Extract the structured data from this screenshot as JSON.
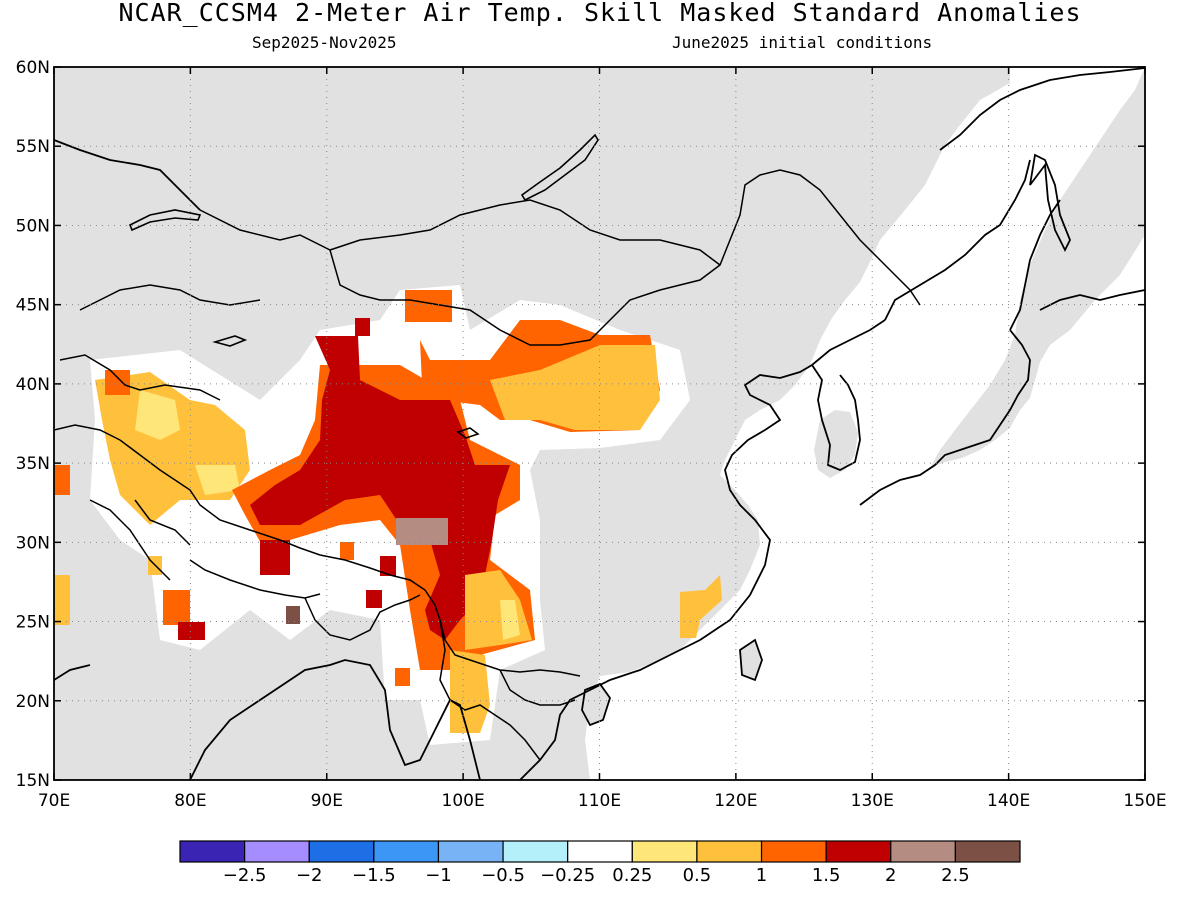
{
  "title": "NCAR_CCSM4 2-Meter Air Temp. Skill Masked Standard Anomalies",
  "subtitle_left": "Sep2025-Nov2025",
  "subtitle_right": "June2025 initial conditions",
  "map": {
    "lon_range": [
      70,
      150
    ],
    "lat_range": [
      15,
      60
    ],
    "lon_ticks": [
      "70E",
      "80E",
      "90E",
      "100E",
      "110E",
      "120E",
      "130E",
      "140E",
      "150E"
    ],
    "lat_ticks": [
      "15N",
      "20N",
      "25N",
      "30N",
      "35N",
      "40N",
      "45N",
      "50N",
      "55N",
      "60N"
    ],
    "grid": true,
    "land_color": "#e1e1e1",
    "ocean_color": "#ffffff"
  },
  "colorbar": {
    "colors": [
      "#3a24b4",
      "#a58cff",
      "#1e6ee6",
      "#3c96f5",
      "#78b4f5",
      "#b4f0fa",
      "#ffffff",
      "#ffe678",
      "#ffc03c",
      "#ff6400",
      "#c00000",
      "#b48c82",
      "#7d5046"
    ],
    "labels": [
      "-2.5",
      "-2",
      "-1.5",
      "-1",
      "-0.5",
      "-0.25",
      "0.25",
      "0.5",
      "1",
      "1.5",
      "2",
      "2.5"
    ]
  }
}
